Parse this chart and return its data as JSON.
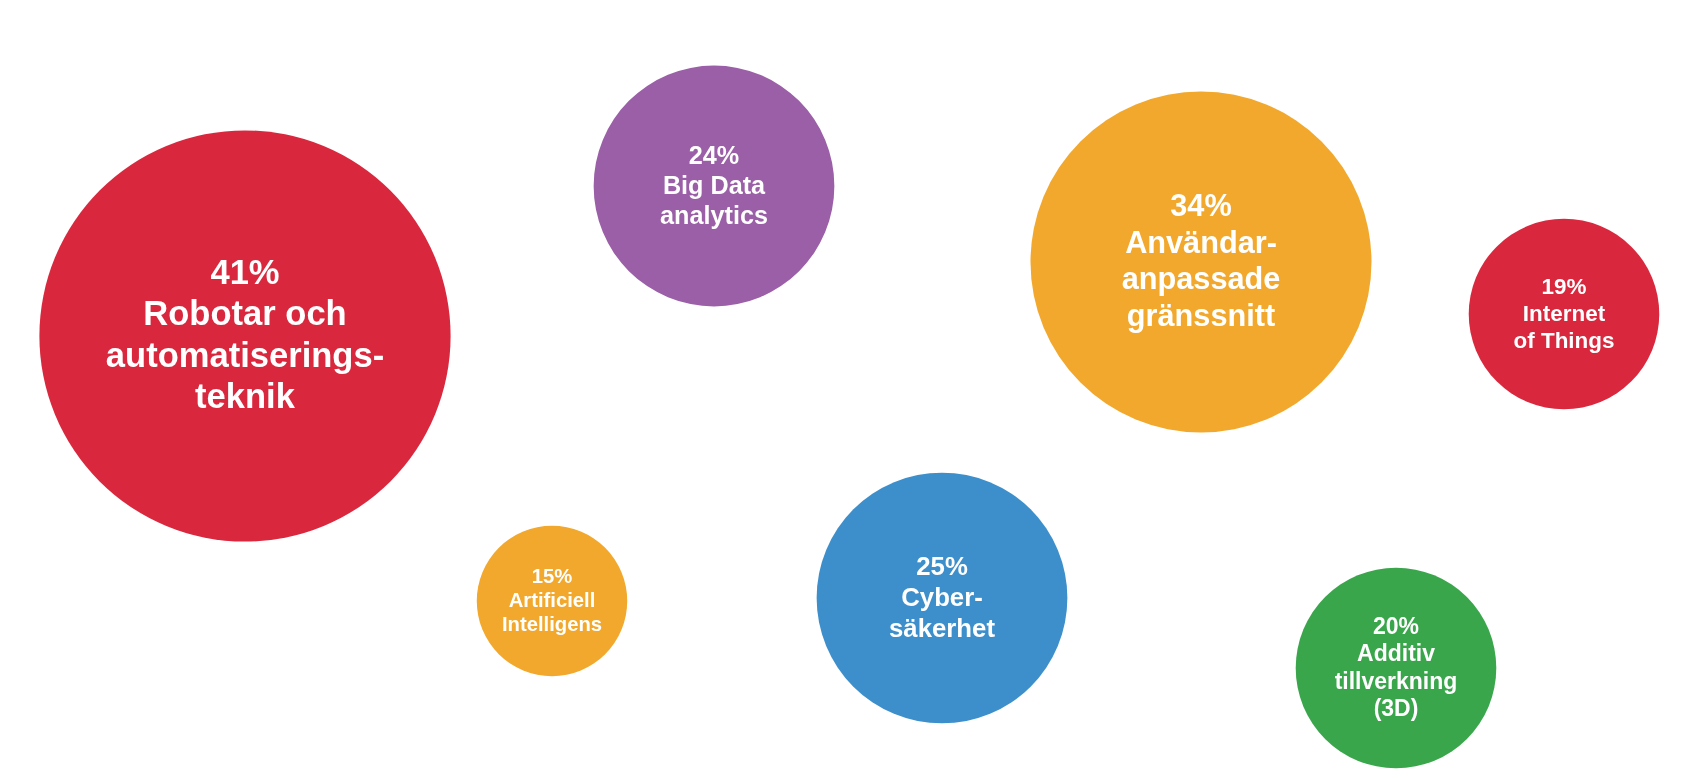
{
  "chart_data": {
    "type": "other",
    "categories": [
      "Robotar och\nautomatiserings-\nteknik",
      "Big Data\nanalytics",
      "Användar-\nanpassade\ngränssnitt",
      "Internet\nof Things",
      "Artificiell\nIntelligens",
      "Cyber-\nsäkerhet",
      "Additiv\ntillverkning\n(3D)"
    ],
    "values": [
      41,
      24,
      34,
      19,
      15,
      25,
      20
    ],
    "value_labels": [
      "41%",
      "24%",
      "34%",
      "19%",
      "15%",
      "25%",
      "20%"
    ],
    "colors": [
      "#d9283d",
      "#9b5fa8",
      "#f2a82c",
      "#d9283d",
      "#f2a82c",
      "#3d8fcc",
      "#3aa64b"
    ]
  }
}
